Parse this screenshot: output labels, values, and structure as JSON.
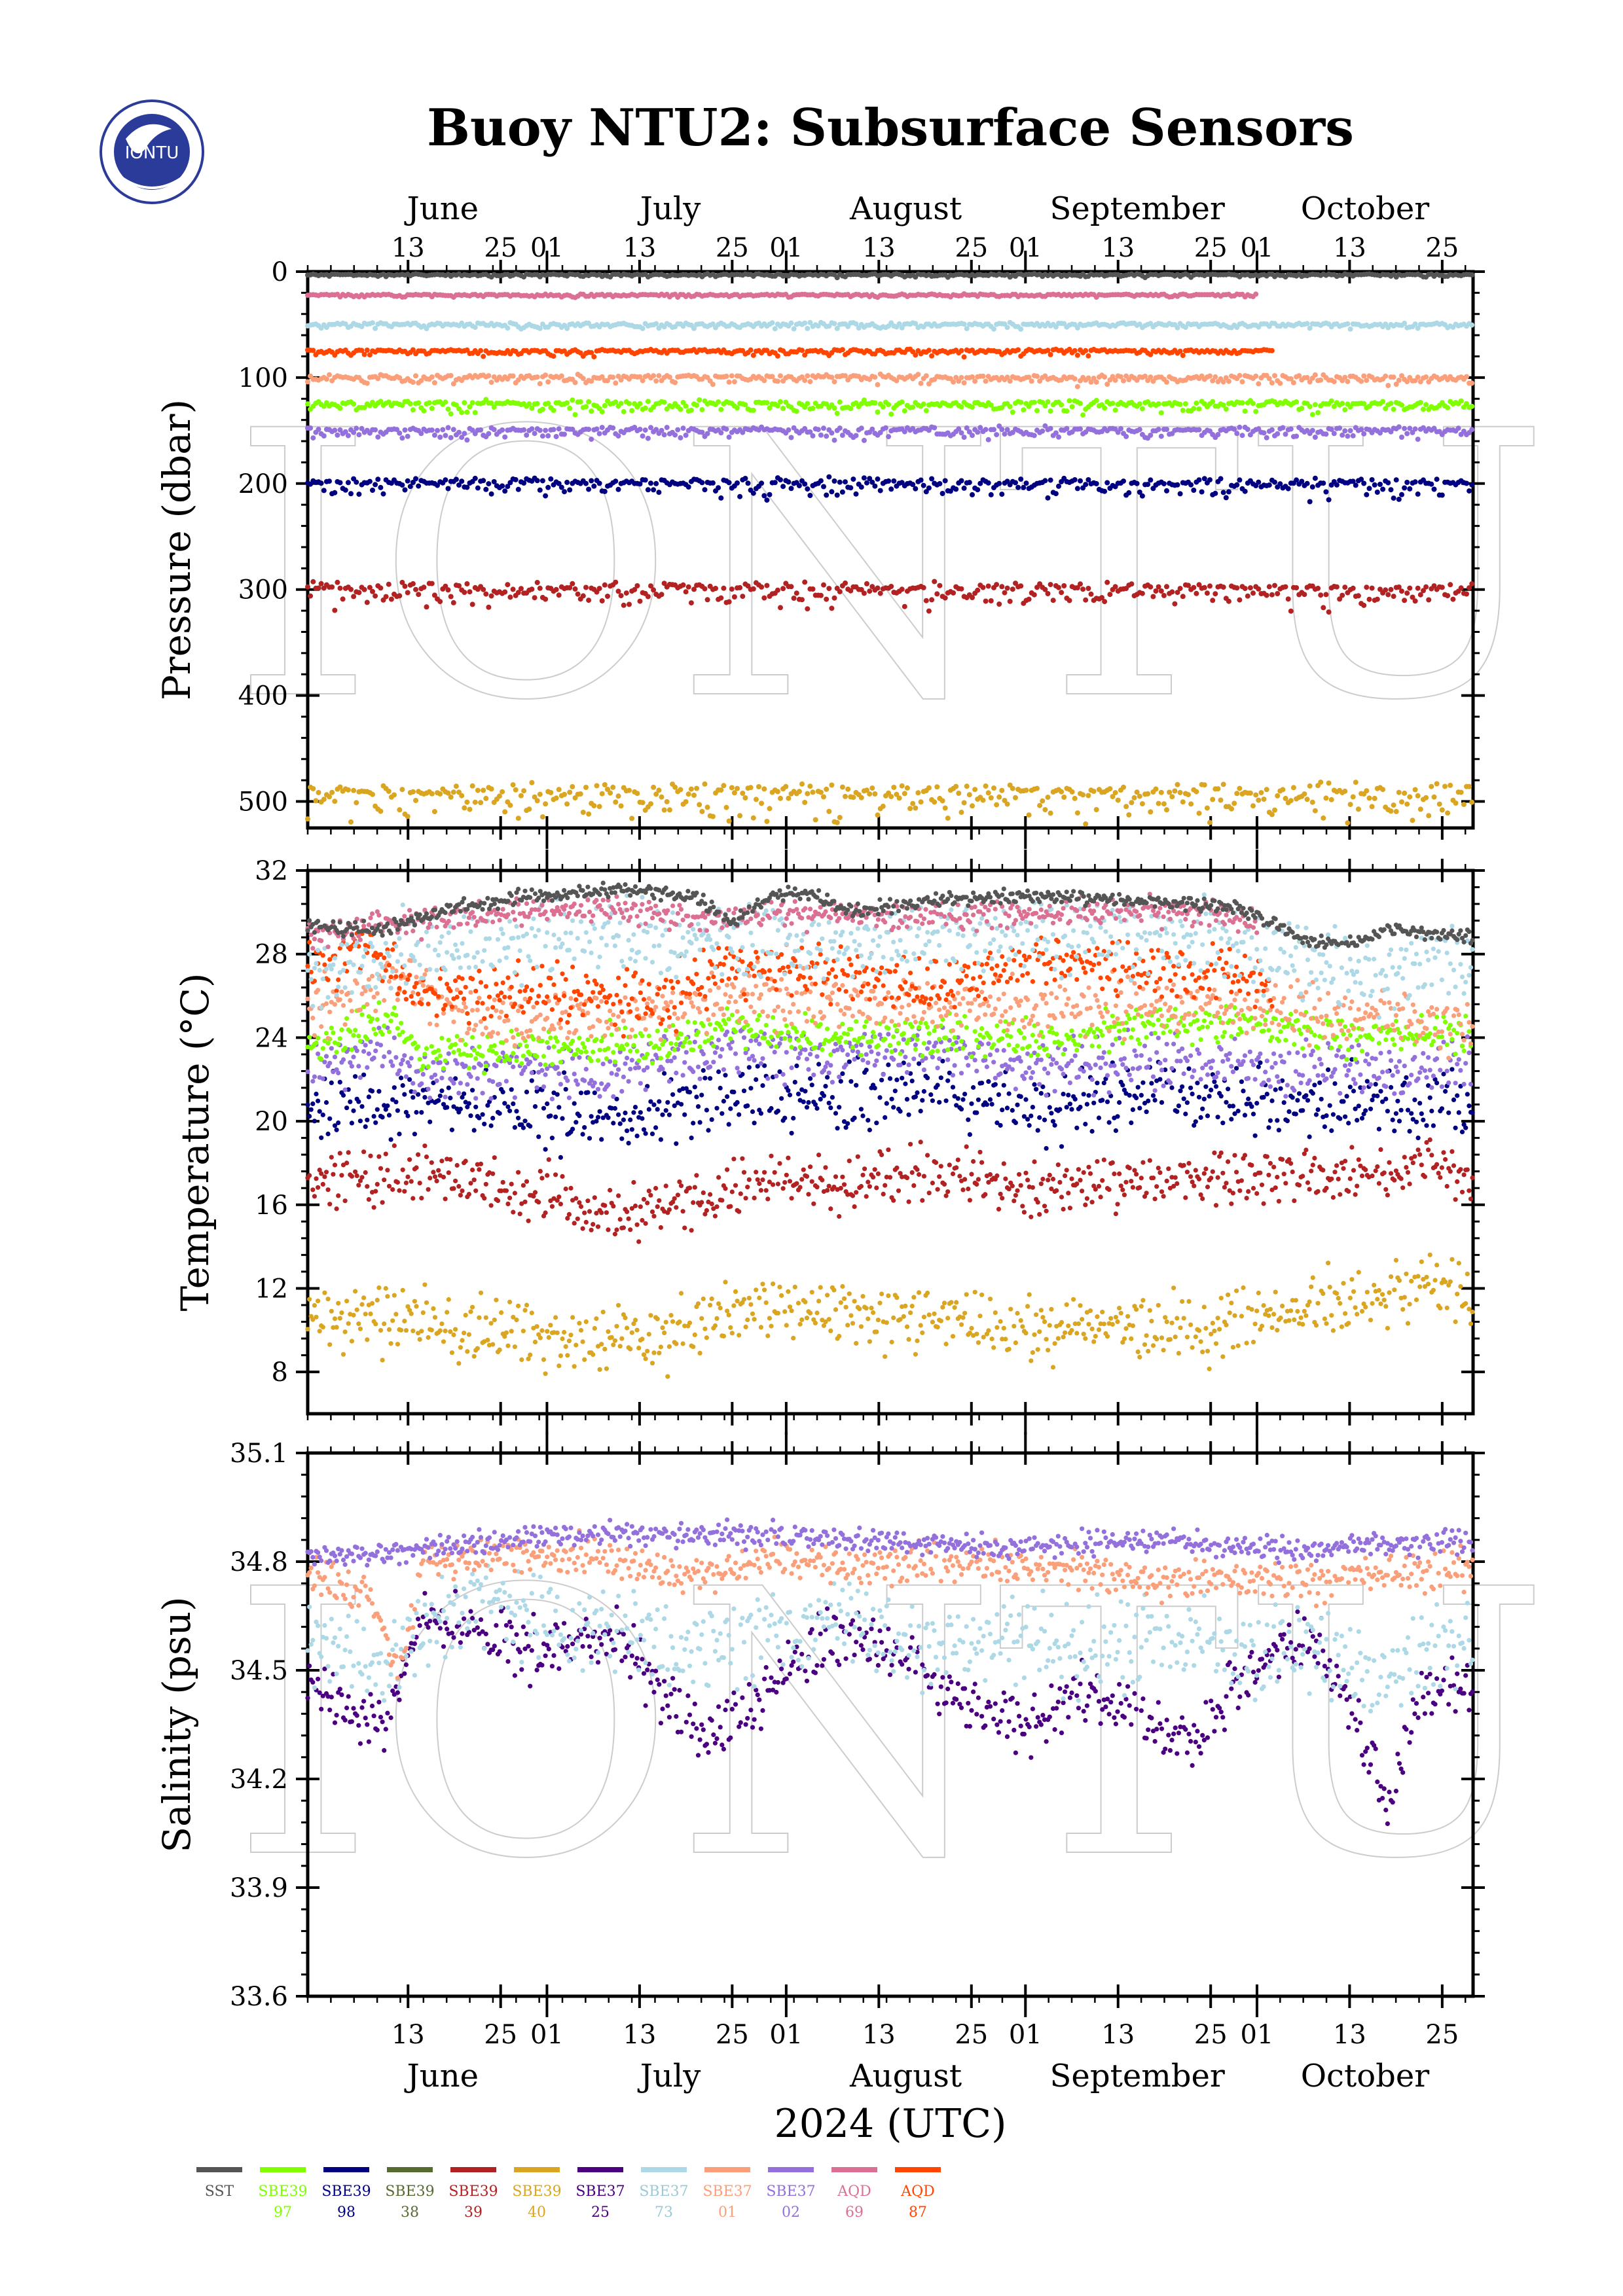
{
  "page": {
    "title": "Buoy NTU2: Subsurface Sensors",
    "watermark": "IONTU",
    "logo_text": "IONTU",
    "x_axis_label": "2024 (UTC)"
  },
  "time_axis": {
    "months": [
      "June",
      "July",
      "August",
      "September",
      "October"
    ],
    "day_ticks": [
      "13",
      "25",
      "01",
      "13",
      "25",
      "01",
      "13",
      "25",
      "01",
      "13",
      "25",
      "01",
      "13",
      "25"
    ],
    "day_positions": [
      13,
      25,
      31,
      43,
      55,
      62,
      74,
      86,
      93,
      105,
      117,
      123,
      135,
      147
    ],
    "month_centers": [
      17.5,
      47,
      77.5,
      107.5,
      137
    ],
    "range": [
      0,
      151
    ]
  },
  "legend": [
    {
      "name": "SST",
      "id": "",
      "color": "#555555"
    },
    {
      "name": "SBE39",
      "id": "97",
      "color": "#7fff00"
    },
    {
      "name": "SBE39",
      "id": "98",
      "color": "#000080"
    },
    {
      "name": "SBE39",
      "id": "38",
      "color": "#556b2f"
    },
    {
      "name": "SBE39",
      "id": "39",
      "color": "#b22222"
    },
    {
      "name": "SBE39",
      "id": "40",
      "color": "#daa520"
    },
    {
      "name": "SBE37",
      "id": "25",
      "color": "#4b0082"
    },
    {
      "name": "SBE37",
      "id": "73",
      "color": "#add8e6"
    },
    {
      "name": "SBE37",
      "id": "01",
      "color": "#fa9f7a"
    },
    {
      "name": "SBE37",
      "id": "02",
      "color": "#9370db"
    },
    {
      "name": "AQD",
      "id": "69",
      "color": "#db7093"
    },
    {
      "name": "AQD",
      "id": "87",
      "color": "#ff4500"
    }
  ],
  "chart_data": [
    {
      "type": "scatter",
      "title": "Buoy NTU2: Subsurface Sensors",
      "ylabel": "Pressure (dbar)",
      "ylim": [
        0,
        525
      ],
      "y_reversed": true,
      "y_ticks": [
        "0",
        "100",
        "200",
        "300",
        "400",
        "500"
      ],
      "series": [
        {
          "name": "SST",
          "mean": 3,
          "noise": 1,
          "range": [
            0,
            151
          ],
          "color": "#555555"
        },
        {
          "name": "AQD 69",
          "mean": 22,
          "noise": 1,
          "range": [
            0,
            123
          ],
          "color": "#db7093"
        },
        {
          "name": "SBE37 73",
          "mean": 50,
          "noise": 2,
          "range": [
            0,
            151
          ],
          "color": "#add8e6"
        },
        {
          "name": "AQD 87",
          "mean": 75,
          "noise": 2,
          "range": [
            0,
            125
          ],
          "color": "#ff4500"
        },
        {
          "name": "SBE37 01",
          "mean": 100,
          "noise": 3,
          "range": [
            0,
            151
          ],
          "color": "#fa9f7a"
        },
        {
          "name": "SBE39 97",
          "mean": 125,
          "noise": 4,
          "range": [
            0,
            151
          ],
          "color": "#7fff00"
        },
        {
          "name": "SBE37 02",
          "mean": 150,
          "noise": 4,
          "range": [
            0,
            151
          ],
          "color": "#9370db"
        },
        {
          "name": "SBE39 98",
          "mean": 200,
          "noise": 6,
          "range": [
            0,
            151
          ],
          "color": "#000080"
        },
        {
          "name": "SBE39 39",
          "mean": 300,
          "noise": 8,
          "range": [
            0,
            151
          ],
          "color": "#b22222"
        },
        {
          "name": "SBE39 40",
          "mean": 493,
          "noise": 12,
          "range": [
            0,
            151
          ],
          "color": "#daa520"
        }
      ]
    },
    {
      "type": "scatter",
      "ylabel": "Temperature (°C)",
      "ylim": [
        6,
        32
      ],
      "y_ticks": [
        "8",
        "12",
        "16",
        "20",
        "24",
        "28",
        "32"
      ],
      "series": [
        {
          "name": "SBE39 40",
          "color": "#daa520",
          "noise": 1.2,
          "points": [
            [
              0,
              10.8
            ],
            [
              15,
              10.5
            ],
            [
              30,
              9.8
            ],
            [
              45,
              9.5
            ],
            [
              55,
              11
            ],
            [
              70,
              10.8
            ],
            [
              80,
              10.5
            ],
            [
              95,
              10
            ],
            [
              105,
              10.3
            ],
            [
              115,
              10
            ],
            [
              125,
              11
            ],
            [
              140,
              11.5
            ],
            [
              146,
              12.5
            ],
            [
              151,
              11
            ]
          ]
        },
        {
          "name": "SBE39 39",
          "color": "#b22222",
          "noise": 1.0,
          "points": [
            [
              0,
              17.2
            ],
            [
              15,
              17.5
            ],
            [
              30,
              16.5
            ],
            [
              40,
              15.5
            ],
            [
              50,
              16.2
            ],
            [
              60,
              17.3
            ],
            [
              70,
              17
            ],
            [
              80,
              17.5
            ],
            [
              95,
              16.8
            ],
            [
              110,
              17.2
            ],
            [
              125,
              17.5
            ],
            [
              140,
              17.5
            ],
            [
              145,
              18.2
            ],
            [
              151,
              17.2
            ]
          ]
        },
        {
          "name": "SBE39 98",
          "color": "#000080",
          "noise": 1.2,
          "points": [
            [
              0,
              20.5
            ],
            [
              15,
              21
            ],
            [
              30,
              20.5
            ],
            [
              40,
              20
            ],
            [
              50,
              20.8
            ],
            [
              60,
              21.2
            ],
            [
              70,
              21
            ],
            [
              80,
              21.5
            ],
            [
              95,
              20.5
            ],
            [
              110,
              21.5
            ],
            [
              125,
              20.8
            ],
            [
              140,
              21
            ],
            [
              151,
              20.7
            ]
          ]
        },
        {
          "name": "SBE37 02",
          "color": "#9370db",
          "noise": 0.9,
          "points": [
            [
              0,
              22.5
            ],
            [
              10,
              23.5
            ],
            [
              15,
              22
            ],
            [
              25,
              22.5
            ],
            [
              40,
              22.3
            ],
            [
              55,
              23.5
            ],
            [
              65,
              23
            ],
            [
              80,
              23.5
            ],
            [
              95,
              22.5
            ],
            [
              110,
              23
            ],
            [
              125,
              22.5
            ],
            [
              140,
              22.5
            ],
            [
              151,
              22.8
            ]
          ]
        },
        {
          "name": "SBE39 97",
          "color": "#7fff00",
          "noise": 0.7,
          "points": [
            [
              0,
              23.5
            ],
            [
              10,
              25
            ],
            [
              15,
              23.2
            ],
            [
              30,
              23.5
            ],
            [
              45,
              23.5
            ],
            [
              55,
              24.5
            ],
            [
              70,
              24
            ],
            [
              85,
              24
            ],
            [
              100,
              24
            ],
            [
              110,
              24.8
            ],
            [
              125,
              24.5
            ],
            [
              140,
              24
            ],
            [
              151,
              24.3
            ]
          ]
        },
        {
          "name": "SBE37 01",
          "color": "#fa9f7a",
          "noise": 1.0,
          "points": [
            [
              0,
              25
            ],
            [
              12,
              27
            ],
            [
              20,
              25
            ],
            [
              35,
              25
            ],
            [
              50,
              25.5
            ],
            [
              60,
              26
            ],
            [
              80,
              25.5
            ],
            [
              100,
              25.5
            ],
            [
              120,
              25.5
            ],
            [
              135,
              25
            ],
            [
              151,
              24.8
            ]
          ]
        },
        {
          "name": "AQD 87",
          "color": "#ff4500",
          "noise": 1.0,
          "points": [
            [
              0,
              27
            ],
            [
              8,
              28.5
            ],
            [
              15,
              26
            ],
            [
              35,
              26.2
            ],
            [
              45,
              25.5
            ],
            [
              55,
              27.5
            ],
            [
              70,
              27
            ],
            [
              80,
              26.5
            ],
            [
              95,
              27.5
            ],
            [
              105,
              27.5
            ],
            [
              120,
              27
            ],
            [
              125,
              26.5
            ]
          ]
        },
        {
          "name": "SBE37 73",
          "color": "#add8e6",
          "noise": 1.3,
          "points": [
            [
              0,
              27
            ],
            [
              20,
              28.5
            ],
            [
              40,
              29
            ],
            [
              55,
              28.5
            ],
            [
              70,
              28.5
            ],
            [
              85,
              29
            ],
            [
              100,
              29
            ],
            [
              115,
              29
            ],
            [
              125,
              28
            ],
            [
              135,
              27.2
            ],
            [
              151,
              27.8
            ]
          ]
        },
        {
          "name": "AQD 69",
          "color": "#db7093",
          "noise": 0.5,
          "points": [
            [
              0,
              29
            ],
            [
              20,
              29.8
            ],
            [
              40,
              30.2
            ],
            [
              52,
              29.5
            ],
            [
              60,
              30
            ],
            [
              75,
              29.8
            ],
            [
              95,
              30
            ],
            [
              115,
              30
            ],
            [
              123,
              29.5
            ]
          ]
        },
        {
          "name": "SST",
          "color": "#555555",
          "noise": 0.25,
          "points": [
            [
              0,
              29.3
            ],
            [
              10,
              29.2
            ],
            [
              20,
              30.3
            ],
            [
              30,
              30.8
            ],
            [
              40,
              31.1
            ],
            [
              50,
              30.8
            ],
            [
              55,
              29.5
            ],
            [
              60,
              30.8
            ],
            [
              65,
              31
            ],
            [
              70,
              30
            ],
            [
              80,
              30.5
            ],
            [
              90,
              30.8
            ],
            [
              100,
              30.7
            ],
            [
              110,
              30.5
            ],
            [
              120,
              30.3
            ],
            [
              125,
              29.5
            ],
            [
              130,
              28.6
            ],
            [
              135,
              28.5
            ],
            [
              140,
              29.2
            ],
            [
              151,
              28.8
            ]
          ]
        }
      ]
    },
    {
      "type": "scatter",
      "ylabel": "Salinity (psu)",
      "ylim": [
        33.6,
        35.1
      ],
      "y_ticks": [
        "33.6",
        "33.9",
        "34.2",
        "34.5",
        "34.8",
        "35.1"
      ],
      "series": [
        {
          "name": "SBE37 25",
          "color": "#4b0082",
          "noise": 0.06,
          "points": [
            [
              0,
              34.45
            ],
            [
              5,
              34.4
            ],
            [
              10,
              34.35
            ],
            [
              15,
              34.65
            ],
            [
              20,
              34.62
            ],
            [
              30,
              34.55
            ],
            [
              40,
              34.6
            ],
            [
              45,
              34.45
            ],
            [
              52,
              34.3
            ],
            [
              60,
              34.45
            ],
            [
              65,
              34.55
            ],
            [
              70,
              34.6
            ],
            [
              80,
              34.5
            ],
            [
              85,
              34.4
            ],
            [
              95,
              34.35
            ],
            [
              100,
              34.45
            ],
            [
              110,
              34.35
            ],
            [
              115,
              34.3
            ],
            [
              120,
              34.45
            ],
            [
              125,
              34.55
            ],
            [
              130,
              34.6
            ],
            [
              135,
              34.4
            ],
            [
              140,
              34.15
            ],
            [
              145,
              34.45
            ],
            [
              151,
              34.45
            ]
          ]
        },
        {
          "name": "SBE37 73",
          "color": "#add8e6",
          "noise": 0.09,
          "points": [
            [
              0,
              34.6
            ],
            [
              10,
              34.5
            ],
            [
              20,
              34.7
            ],
            [
              30,
              34.65
            ],
            [
              40,
              34.6
            ],
            [
              50,
              34.55
            ],
            [
              60,
              34.6
            ],
            [
              70,
              34.65
            ],
            [
              80,
              34.55
            ],
            [
              90,
              34.6
            ],
            [
              100,
              34.55
            ],
            [
              110,
              34.6
            ],
            [
              120,
              34.55
            ],
            [
              130,
              34.55
            ],
            [
              140,
              34.5
            ],
            [
              151,
              34.6
            ]
          ]
        },
        {
          "name": "SBE37 01",
          "color": "#fa9f7a",
          "noise": 0.04,
          "points": [
            [
              0,
              34.78
            ],
            [
              8,
              34.7
            ],
            [
              12,
              34.5
            ],
            [
              15,
              34.8
            ],
            [
              25,
              34.82
            ],
            [
              40,
              34.8
            ],
            [
              50,
              34.75
            ],
            [
              60,
              34.82
            ],
            [
              70,
              34.78
            ],
            [
              90,
              34.8
            ],
            [
              110,
              34.75
            ],
            [
              130,
              34.75
            ],
            [
              151,
              34.78
            ]
          ]
        },
        {
          "name": "SBE37 02",
          "color": "#9370db",
          "noise": 0.025,
          "points": [
            [
              0,
              34.82
            ],
            [
              10,
              34.82
            ],
            [
              20,
              34.85
            ],
            [
              30,
              34.87
            ],
            [
              40,
              34.88
            ],
            [
              50,
              34.87
            ],
            [
              60,
              34.88
            ],
            [
              70,
              34.86
            ],
            [
              80,
              34.85
            ],
            [
              90,
              34.84
            ],
            [
              100,
              34.85
            ],
            [
              110,
              34.86
            ],
            [
              120,
              34.84
            ],
            [
              130,
              34.83
            ],
            [
              140,
              34.85
            ],
            [
              151,
              34.86
            ]
          ]
        }
      ]
    }
  ]
}
